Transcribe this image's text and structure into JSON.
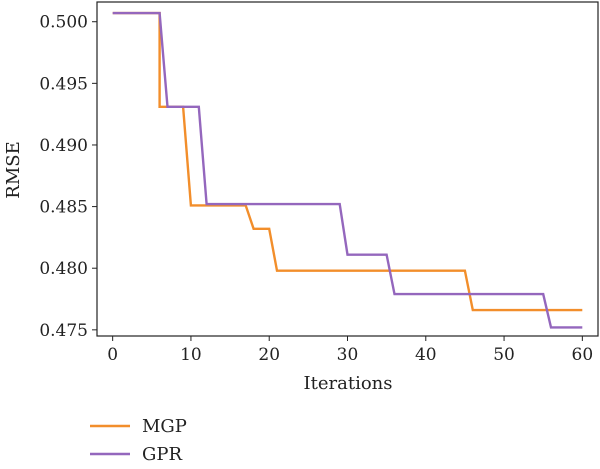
{
  "chart_data": {
    "type": "line",
    "xlabel": "Iterations",
    "ylabel": "RMSE",
    "xlim": [
      -2,
      62
    ],
    "ylim": [
      0.4745,
      0.5016
    ],
    "x_ticks": [
      0,
      10,
      20,
      30,
      40,
      50,
      60
    ],
    "y_ticks": [
      0.475,
      0.48,
      0.485,
      0.49,
      0.495,
      0.5
    ],
    "x_tick_labels": [
      "0",
      "10",
      "20",
      "30",
      "40",
      "50",
      "60"
    ],
    "y_tick_labels": [
      "0.475",
      "0.480",
      "0.485",
      "0.490",
      "0.495",
      "0.500"
    ],
    "grid": false,
    "legend_position": "bottom-left",
    "series": [
      {
        "name": "MGP",
        "color": "#f28e2b",
        "x": [
          0,
          6,
          6,
          9,
          10,
          17,
          18,
          20,
          21,
          45,
          46,
          60
        ],
        "y": [
          0.5007,
          0.5007,
          0.4931,
          0.4931,
          0.4851,
          0.4851,
          0.4832,
          0.4832,
          0.4798,
          0.4798,
          0.4766,
          0.4766
        ]
      },
      {
        "name": "GPR",
        "color": "#9467bd",
        "x": [
          0,
          6,
          7,
          11,
          12,
          29,
          30,
          35,
          36,
          55,
          56,
          60
        ],
        "y": [
          0.5007,
          0.5007,
          0.4931,
          0.4931,
          0.4852,
          0.4852,
          0.4811,
          0.4811,
          0.4779,
          0.4779,
          0.4752,
          0.4752
        ]
      }
    ]
  }
}
